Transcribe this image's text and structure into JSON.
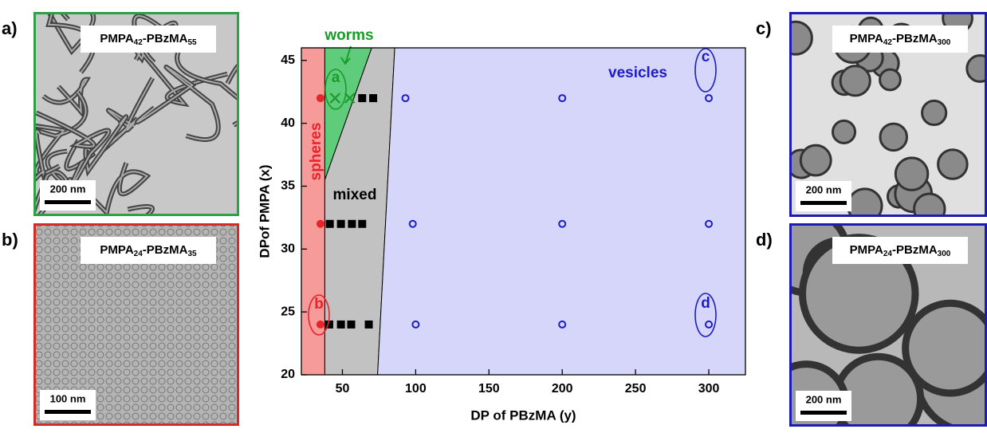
{
  "chart_data": {
    "type": "scatter",
    "xlabel": "DP of PBzMA (y)",
    "ylabel": "DPof PMPA (x)",
    "xlim": [
      22,
      325
    ],
    "ylim": [
      20,
      46
    ],
    "xticks": [
      50,
      100,
      150,
      200,
      250,
      300
    ],
    "yticks": [
      20,
      25,
      30,
      35,
      40,
      45
    ],
    "regions": [
      {
        "name": "spheres",
        "color": "#f79a9a",
        "text_color": "#e8232a",
        "x": [
          22,
          38,
          38,
          22
        ],
        "y": [
          20,
          20,
          46,
          46
        ]
      },
      {
        "name": "worms",
        "color": "#5fcc7c",
        "text_color": "#1a9c2a",
        "x": [
          38,
          38,
          70
        ],
        "y": [
          35.5,
          46,
          46
        ]
      },
      {
        "name": "mixed",
        "color": "#c2c2c2",
        "text_color": "#000000",
        "x": [
          38,
          74,
          85.7,
          70,
          38
        ],
        "y": [
          20,
          20,
          46,
          46,
          35.5
        ]
      },
      {
        "name": "vesicles",
        "color": "#d6d6fb",
        "text_color": "#1c1cc8",
        "x": [
          74,
          325,
          325,
          85.7
        ],
        "y": [
          20,
          20,
          46,
          46
        ]
      }
    ],
    "series": [
      {
        "marker": "dot",
        "color": "#e8232a",
        "x": [
          35,
          35,
          35
        ],
        "y": [
          42,
          32,
          24
        ]
      },
      {
        "marker": "cross",
        "color": "#1a9c2a",
        "x": [
          45,
          55
        ],
        "y": [
          42,
          42
        ]
      },
      {
        "marker": "square",
        "color": "#000000",
        "x": [
          63.5,
          71,
          41.4,
          49,
          56.5,
          63.5,
          41,
          49,
          56,
          68
        ],
        "y": [
          42,
          42,
          32,
          32,
          32,
          32,
          24,
          24,
          24,
          24
        ]
      },
      {
        "marker": "ring",
        "color": "#1c1cc8",
        "x": [
          93,
          200,
          300,
          98,
          200,
          300,
          100,
          200,
          300
        ],
        "y": [
          42,
          42,
          42,
          32,
          32,
          32,
          24,
          24,
          24
        ]
      }
    ],
    "annotations": [
      "a",
      "b",
      "c",
      "d"
    ]
  },
  "panels": [
    {
      "label": "a)",
      "title": [
        "PMPA",
        "42",
        "-PBzMA",
        "55"
      ],
      "scale": "200 nm",
      "border": "#2fa04a"
    },
    {
      "label": "b)",
      "title": [
        "PMPA",
        "24",
        "-PBzMA",
        "35"
      ],
      "scale": "100 nm",
      "border": "#d42a2a"
    },
    {
      "label": "c)",
      "title": [
        "PMPA",
        "42",
        "-PBzMA",
        "300"
      ],
      "scale": "200 nm",
      "border": "#1c1cb4"
    },
    {
      "label": "d)",
      "title": [
        "PMPA",
        "24",
        "-PBzMA",
        "300"
      ],
      "scale": "200 nm",
      "border": "#1c1cb4"
    }
  ]
}
